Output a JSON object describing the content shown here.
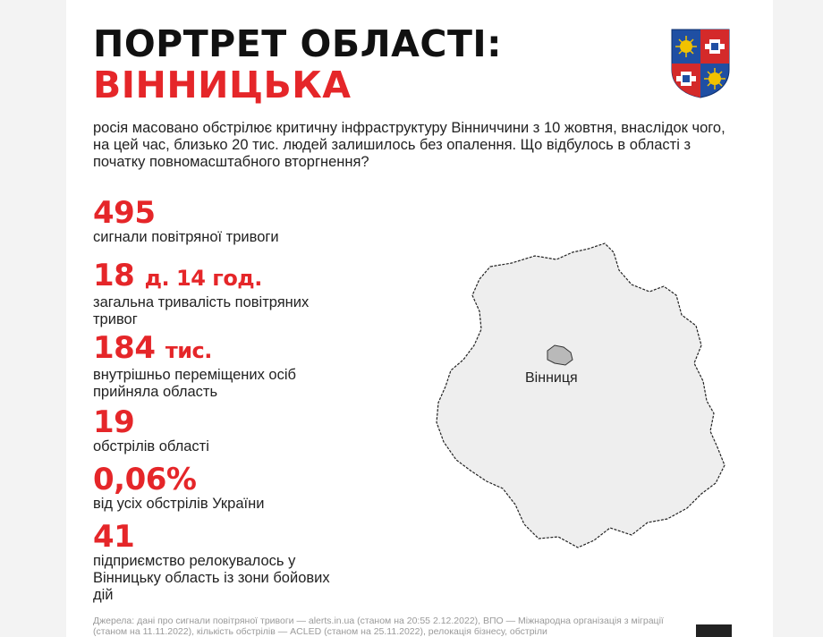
{
  "title": {
    "line1": "ПОРТРЕТ ОБЛАСТІ:",
    "line2": "ВІННИЦЬКА"
  },
  "intro": "росія масовано обстрілює критичну інфраструктуру Вінниччини з 10 жовтня, внаслідок чого, на цей час, близько 20 тис. людей залишилось без опалення. Що відбулось в області з початку повномасштабного вторгнення?",
  "stats": [
    {
      "num": "495",
      "unit": "",
      "label": "сигнали повітряної тривоги"
    },
    {
      "num": "18",
      "unit": "д. 14 год.",
      "label": "загальна тривалість повітряних тривог"
    },
    {
      "num": "184",
      "unit": "тис.",
      "label": "внутрішньо переміщених осіб прийняла область"
    },
    {
      "num": "19",
      "unit": "",
      "label": "обстрілів області"
    },
    {
      "num": "0,06%",
      "unit": "",
      "label": "від усіх обстрілів України"
    },
    {
      "num": "41",
      "unit": "",
      "label": "підприємство релокувалось у Вінницьку область із зони бойових дій"
    }
  ],
  "map": {
    "city_label": "Вінниця",
    "region_color": "#eeeeee",
    "city_color": "#b9b9b9"
  },
  "footer": "Джерела: дані про сигнали повітряної тривоги — alerts.in.ua (станом на 20:55 2.12.2022), ВПО — Міжнародна організація з міграції (станом на 11.11.2022), кількість обстрілів — ACLED (станом на 25.11.2022), релокація бізнесу, обстріли",
  "colors": {
    "accent": "#e52629",
    "text": "#111111",
    "coat_blue": "#1f4fa3",
    "coat_red": "#d42a2a",
    "coat_gold": "#f2c200"
  }
}
